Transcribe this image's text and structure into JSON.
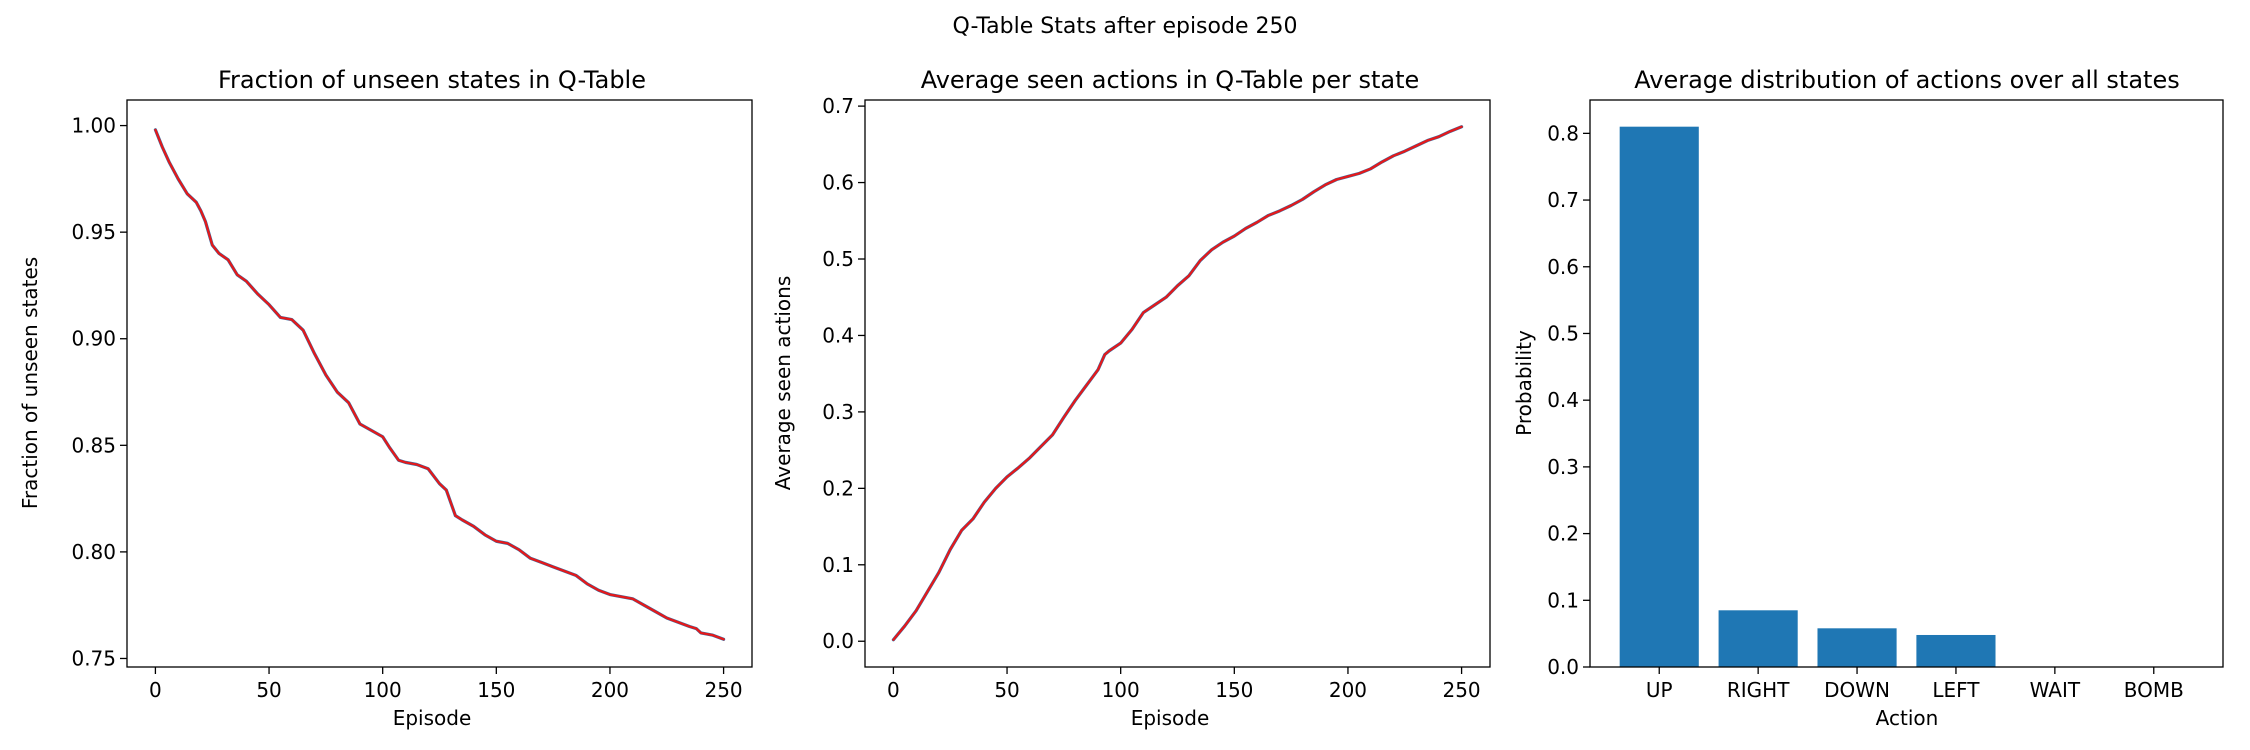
{
  "figure": {
    "suptitle": "Q-Table Stats after episode 250"
  },
  "colors": {
    "series_blue": "#1f77b4",
    "series_red": "#e31a1c",
    "bar": "#1f77b4"
  },
  "chart_data": [
    {
      "type": "line",
      "title": "Fraction of unseen states in Q-Table",
      "xlabel": "Episode",
      "ylabel": "Fraction of unseen states",
      "xlim": [
        -12.5,
        262.5
      ],
      "ylim": [
        0.746,
        1.012
      ],
      "xticks": [
        0,
        50,
        100,
        150,
        200,
        250
      ],
      "xtick_labels": [
        "0",
        "50",
        "100",
        "150",
        "200",
        "250"
      ],
      "yticks": [
        0.75,
        0.8,
        0.85,
        0.9,
        0.95,
        1.0
      ],
      "ytick_labels": [
        "0.75",
        "0.80",
        "0.85",
        "0.90",
        "0.95",
        "1.00"
      ],
      "grid": false,
      "series": [
        {
          "color": "#1f77b4",
          "x": [
            0,
            3,
            6,
            10,
            14,
            18,
            20,
            22,
            25,
            28,
            32,
            36,
            40,
            45,
            50,
            55,
            60,
            65,
            70,
            75,
            80,
            85,
            88,
            90,
            95,
            100,
            103,
            107,
            110,
            115,
            120,
            125,
            128,
            130,
            132,
            135,
            140,
            145,
            150,
            155,
            160,
            165,
            170,
            175,
            180,
            185,
            190,
            195,
            200,
            205,
            210,
            215,
            220,
            225,
            230,
            235,
            238,
            240,
            245,
            250
          ],
          "y": [
            0.998,
            0.99,
            0.983,
            0.975,
            0.968,
            0.964,
            0.96,
            0.955,
            0.944,
            0.94,
            0.937,
            0.93,
            0.927,
            0.921,
            0.916,
            0.91,
            0.909,
            0.904,
            0.893,
            0.883,
            0.875,
            0.87,
            0.864,
            0.86,
            0.857,
            0.854,
            0.849,
            0.843,
            0.842,
            0.841,
            0.839,
            0.832,
            0.829,
            0.823,
            0.817,
            0.815,
            0.812,
            0.808,
            0.805,
            0.804,
            0.801,
            0.797,
            0.795,
            0.793,
            0.791,
            0.789,
            0.785,
            0.782,
            0.78,
            0.779,
            0.778,
            0.775,
            0.772,
            0.769,
            0.767,
            0.765,
            0.764,
            0.762,
            0.761,
            0.759
          ]
        },
        {
          "color": "#e31a1c",
          "x": [
            0,
            3,
            6,
            10,
            14,
            18,
            20,
            22,
            25,
            28,
            32,
            36,
            40,
            45,
            50,
            55,
            60,
            65,
            70,
            75,
            80,
            85,
            88,
            90,
            95,
            100,
            103,
            107,
            110,
            115,
            120,
            125,
            128,
            130,
            132,
            135,
            140,
            145,
            150,
            155,
            160,
            165,
            170,
            175,
            180,
            185,
            190,
            195,
            200,
            205,
            210,
            215,
            220,
            225,
            230,
            235,
            238,
            240,
            245,
            250
          ],
          "y": [
            0.998,
            0.99,
            0.983,
            0.975,
            0.968,
            0.964,
            0.96,
            0.955,
            0.944,
            0.94,
            0.937,
            0.93,
            0.927,
            0.921,
            0.916,
            0.91,
            0.909,
            0.904,
            0.893,
            0.883,
            0.875,
            0.87,
            0.864,
            0.86,
            0.857,
            0.854,
            0.849,
            0.843,
            0.842,
            0.841,
            0.839,
            0.832,
            0.829,
            0.823,
            0.817,
            0.815,
            0.812,
            0.808,
            0.805,
            0.804,
            0.801,
            0.797,
            0.795,
            0.793,
            0.791,
            0.789,
            0.785,
            0.782,
            0.78,
            0.779,
            0.778,
            0.775,
            0.772,
            0.769,
            0.767,
            0.765,
            0.764,
            0.762,
            0.761,
            0.759
          ]
        }
      ]
    },
    {
      "type": "line",
      "title": "Average seen actions in Q-Table per state",
      "xlabel": "Episode",
      "ylabel": "Average seen actions",
      "xlim": [
        -12.5,
        262.5
      ],
      "ylim": [
        -0.0337,
        0.708
      ],
      "xticks": [
        0,
        50,
        100,
        150,
        200,
        250
      ],
      "xtick_labels": [
        "0",
        "50",
        "100",
        "150",
        "200",
        "250"
      ],
      "yticks": [
        0.0,
        0.1,
        0.2,
        0.3,
        0.4,
        0.5,
        0.6,
        0.7
      ],
      "ytick_labels": [
        "0.0",
        "0.1",
        "0.2",
        "0.3",
        "0.4",
        "0.5",
        "0.6",
        "0.7"
      ],
      "grid": false,
      "series": [
        {
          "color": "#1f77b4",
          "x": [
            0,
            5,
            10,
            15,
            20,
            25,
            30,
            35,
            40,
            45,
            50,
            55,
            60,
            65,
            70,
            75,
            80,
            85,
            90,
            93,
            95,
            100,
            105,
            110,
            115,
            120,
            125,
            130,
            135,
            140,
            145,
            150,
            155,
            160,
            165,
            170,
            175,
            180,
            185,
            190,
            195,
            200,
            205,
            210,
            215,
            220,
            225,
            230,
            235,
            240,
            245,
            250
          ],
          "y": [
            0.002,
            0.02,
            0.04,
            0.065,
            0.09,
            0.12,
            0.145,
            0.16,
            0.182,
            0.2,
            0.215,
            0.227,
            0.24,
            0.255,
            0.27,
            0.293,
            0.315,
            0.335,
            0.355,
            0.375,
            0.38,
            0.39,
            0.408,
            0.43,
            0.44,
            0.45,
            0.465,
            0.478,
            0.498,
            0.512,
            0.522,
            0.53,
            0.54,
            0.548,
            0.557,
            0.563,
            0.57,
            0.578,
            0.588,
            0.597,
            0.604,
            0.608,
            0.612,
            0.618,
            0.627,
            0.635,
            0.641,
            0.648,
            0.655,
            0.66,
            0.667,
            0.673
          ]
        },
        {
          "color": "#e31a1c",
          "x": [
            0,
            5,
            10,
            15,
            20,
            25,
            30,
            35,
            40,
            45,
            50,
            55,
            60,
            65,
            70,
            75,
            80,
            85,
            90,
            93,
            95,
            100,
            105,
            110,
            115,
            120,
            125,
            130,
            135,
            140,
            145,
            150,
            155,
            160,
            165,
            170,
            175,
            180,
            185,
            190,
            195,
            200,
            205,
            210,
            215,
            220,
            225,
            230,
            235,
            240,
            245,
            250
          ],
          "y": [
            0.002,
            0.02,
            0.04,
            0.065,
            0.09,
            0.12,
            0.145,
            0.16,
            0.182,
            0.2,
            0.215,
            0.227,
            0.24,
            0.255,
            0.27,
            0.293,
            0.315,
            0.335,
            0.355,
            0.375,
            0.38,
            0.39,
            0.408,
            0.43,
            0.44,
            0.45,
            0.465,
            0.478,
            0.498,
            0.512,
            0.522,
            0.53,
            0.54,
            0.548,
            0.557,
            0.563,
            0.57,
            0.578,
            0.588,
            0.597,
            0.604,
            0.608,
            0.612,
            0.618,
            0.627,
            0.635,
            0.641,
            0.648,
            0.655,
            0.66,
            0.667,
            0.673
          ]
        }
      ]
    },
    {
      "type": "bar",
      "title": "Average distribution of actions over all states",
      "xlabel": "Action",
      "ylabel": "Probability",
      "categories": [
        "UP",
        "RIGHT",
        "DOWN",
        "LEFT",
        "WAIT",
        "BOMB"
      ],
      "values": [
        0.81,
        0.085,
        0.058,
        0.048,
        0.0,
        0.0
      ],
      "ylim": [
        0,
        0.85
      ],
      "yticks": [
        0.0,
        0.1,
        0.2,
        0.3,
        0.4,
        0.5,
        0.6,
        0.7,
        0.8
      ],
      "ytick_labels": [
        "0.0",
        "0.1",
        "0.2",
        "0.3",
        "0.4",
        "0.5",
        "0.6",
        "0.7",
        "0.8"
      ],
      "grid": false
    }
  ]
}
